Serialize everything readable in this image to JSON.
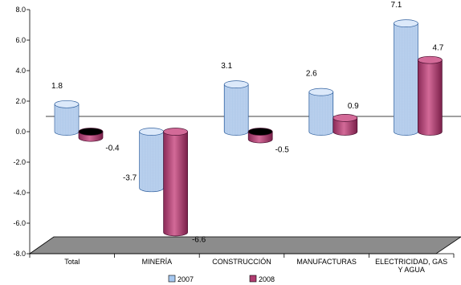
{
  "chart_data": {
    "type": "bar",
    "categories": [
      "Total",
      "MINERÍA",
      "CONSTRUCCIÓN",
      "MANUFACTURAS",
      "ELECTRICIDAD, GAS Y AGUA"
    ],
    "category_lines": [
      [
        "Total"
      ],
      [
        "MINERÍA"
      ],
      [
        "CONSTRUCCIÓN"
      ],
      [
        "MANUFACTURAS"
      ],
      [
        "ELECTRICIDAD, GAS",
        "Y AGUA"
      ]
    ],
    "series": [
      {
        "name": "2007",
        "values": [
          1.8,
          -3.7,
          3.1,
          2.6,
          7.1
        ],
        "labels": [
          "1.8",
          "-3.7",
          "3.1",
          "2.6",
          "7.1"
        ]
      },
      {
        "name": "2008",
        "values": [
          -0.4,
          -6.6,
          -0.5,
          0.9,
          4.7
        ],
        "labels": [
          "-0.4",
          "-6.6",
          "-0.5",
          "0.9",
          "4.7"
        ]
      }
    ],
    "y_ticks": [
      "8.0",
      "6.0",
      "4.0",
      "2.0",
      "0.0",
      "-2.0",
      "-4.0",
      "-6.0",
      "-8.0"
    ],
    "ylim": [
      -8,
      8
    ],
    "style": "3d-cylinder",
    "legend_position": "bottom",
    "colors": {
      "2007_face": "#a6c8f0",
      "2007_light": "#dce9fa",
      "2007_dark": "#7da6d8",
      "2008_face": "#b03c70",
      "2008_light": "#d36a98",
      "2008_dark": "#7a1f49",
      "floor": "#8c8c8c"
    }
  }
}
